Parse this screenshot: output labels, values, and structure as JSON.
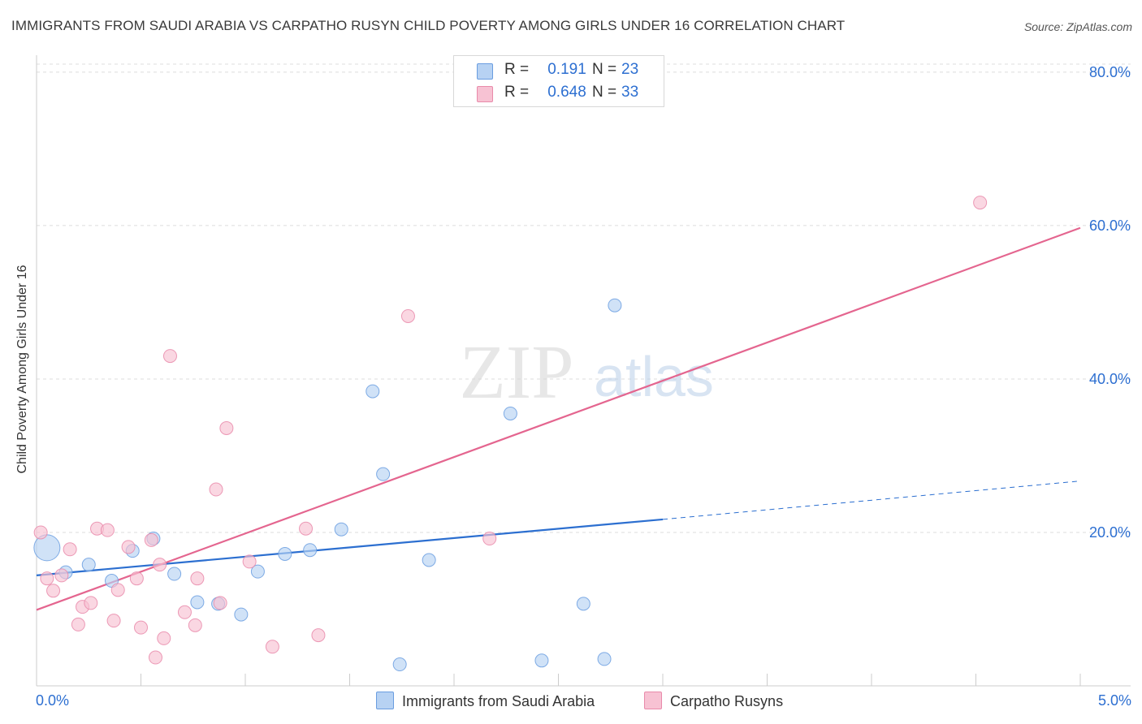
{
  "title": "IMMIGRANTS FROM SAUDI ARABIA VS CARPATHO RUSYN CHILD POVERTY AMONG GIRLS UNDER 16 CORRELATION CHART",
  "source": "Source: ZipAtlas.com",
  "watermark": {
    "zip": "ZIP",
    "atlas": "atlas"
  },
  "colors": {
    "blue_fill": "#b7d2f3",
    "blue_stroke": "#6a9de0",
    "blue_line": "#2c6fd0",
    "pink_fill": "#f7c2d3",
    "pink_stroke": "#e98aaa",
    "pink_line": "#e4658f",
    "accent_text": "#2d6fd1",
    "grid": "#dddddd"
  },
  "legend_top": {
    "rows": [
      {
        "r_label": "R =",
        "r_value": "0.191",
        "n_label": "N =",
        "n_value": "23",
        "color": "#b7d2f3",
        "border": "#6a9de0"
      },
      {
        "r_label": "R =",
        "r_value": "0.648",
        "n_label": "N =",
        "n_value": "33",
        "color": "#f7c2d3",
        "border": "#e98aaa"
      }
    ]
  },
  "legend_bottom": [
    {
      "label": "Immigrants from Saudi Arabia",
      "color": "#b7d2f3",
      "border": "#6a9de0"
    },
    {
      "label": "Carpatho Rusyns",
      "color": "#f7c2d3",
      "border": "#e98aaa"
    }
  ],
  "chart_data": {
    "type": "scatter",
    "title": "IMMIGRANTS FROM SAUDI ARABIA VS CARPATHO RUSYN CHILD POVERTY AMONG GIRLS UNDER 16 CORRELATION CHART",
    "xlabel": "",
    "ylabel": "Child Poverty Among Girls Under 16",
    "xlim": [
      0,
      5
    ],
    "ylim": [
      0,
      82
    ],
    "x_tick_labels": [
      "0.0%",
      "5.0%"
    ],
    "y_ticks": [
      20,
      40,
      60,
      80
    ],
    "y_tick_labels": [
      "20.0%",
      "40.0%",
      "60.0%",
      "80.0%"
    ],
    "grid": true,
    "series": [
      {
        "name": "Immigrants from Saudi Arabia",
        "r": 0.191,
        "n": 23,
        "points": [
          {
            "x": 0.05,
            "y": 18.0,
            "big": true
          },
          {
            "x": 0.14,
            "y": 14.8
          },
          {
            "x": 0.25,
            "y": 15.8
          },
          {
            "x": 0.36,
            "y": 13.7
          },
          {
            "x": 0.46,
            "y": 17.6
          },
          {
            "x": 0.56,
            "y": 19.2
          },
          {
            "x": 0.66,
            "y": 14.6
          },
          {
            "x": 0.77,
            "y": 10.9
          },
          {
            "x": 0.87,
            "y": 10.7
          },
          {
            "x": 0.98,
            "y": 9.3
          },
          {
            "x": 1.06,
            "y": 14.9
          },
          {
            "x": 1.19,
            "y": 17.2
          },
          {
            "x": 1.31,
            "y": 17.7
          },
          {
            "x": 1.46,
            "y": 20.4
          },
          {
            "x": 1.61,
            "y": 38.4
          },
          {
            "x": 1.66,
            "y": 27.6
          },
          {
            "x": 1.74,
            "y": 2.8
          },
          {
            "x": 1.88,
            "y": 16.4
          },
          {
            "x": 2.27,
            "y": 35.5
          },
          {
            "x": 2.42,
            "y": 3.3
          },
          {
            "x": 2.62,
            "y": 10.7
          },
          {
            "x": 2.72,
            "y": 3.5
          },
          {
            "x": 2.77,
            "y": 49.6
          }
        ],
        "trend": {
          "x0": 0.0,
          "y0": 14.4,
          "x1": 3.0,
          "y1": 21.7,
          "dash_to_x": 5.0,
          "dash_to_y": 26.7
        }
      },
      {
        "name": "Carpatho Rusyns",
        "r": 0.648,
        "n": 33,
        "points": [
          {
            "x": 0.02,
            "y": 20.0
          },
          {
            "x": 0.05,
            "y": 14.0
          },
          {
            "x": 0.08,
            "y": 12.4
          },
          {
            "x": 0.12,
            "y": 14.4
          },
          {
            "x": 0.16,
            "y": 17.8
          },
          {
            "x": 0.2,
            "y": 8.0
          },
          {
            "x": 0.22,
            "y": 10.3
          },
          {
            "x": 0.26,
            "y": 10.8
          },
          {
            "x": 0.29,
            "y": 20.5
          },
          {
            "x": 0.34,
            "y": 20.3
          },
          {
            "x": 0.37,
            "y": 8.5
          },
          {
            "x": 0.39,
            "y": 12.5
          },
          {
            "x": 0.44,
            "y": 18.1
          },
          {
            "x": 0.48,
            "y": 14.0
          },
          {
            "x": 0.5,
            "y": 7.6
          },
          {
            "x": 0.55,
            "y": 19.0
          },
          {
            "x": 0.57,
            "y": 3.7
          },
          {
            "x": 0.59,
            "y": 15.8
          },
          {
            "x": 0.61,
            "y": 6.2
          },
          {
            "x": 0.64,
            "y": 43.0
          },
          {
            "x": 0.71,
            "y": 9.6
          },
          {
            "x": 0.76,
            "y": 7.9
          },
          {
            "x": 0.77,
            "y": 14.0
          },
          {
            "x": 0.86,
            "y": 25.6
          },
          {
            "x": 0.88,
            "y": 10.8
          },
          {
            "x": 0.91,
            "y": 33.6
          },
          {
            "x": 1.02,
            "y": 16.2
          },
          {
            "x": 1.13,
            "y": 5.1
          },
          {
            "x": 1.29,
            "y": 20.5
          },
          {
            "x": 1.35,
            "y": 6.6
          },
          {
            "x": 1.78,
            "y": 48.2
          },
          {
            "x": 2.17,
            "y": 19.2
          },
          {
            "x": 4.52,
            "y": 63.0
          }
        ],
        "trend": {
          "x0": 0.0,
          "y0": 9.9,
          "x1": 5.0,
          "y1": 59.7
        }
      }
    ]
  }
}
